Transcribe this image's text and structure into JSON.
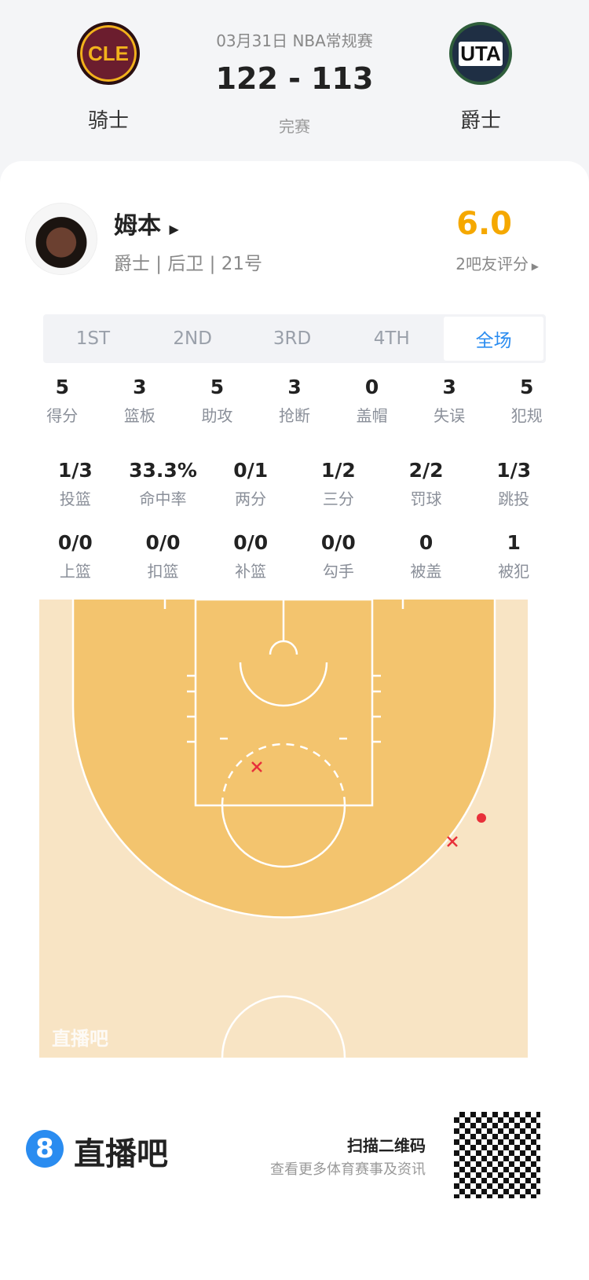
{
  "game": {
    "date_league": "03月31日 NBA常规赛",
    "score": "122 - 113",
    "status": "完赛",
    "home": {
      "abbr": "CLE",
      "name": "骑士"
    },
    "away": {
      "abbr": "UTA",
      "name": "爵士"
    }
  },
  "player": {
    "name": "姆本",
    "info": "爵士 | 后卫 | 21号",
    "rating": "6.0",
    "rating_label": "2吧友评分"
  },
  "tabs": [
    {
      "label": "1ST"
    },
    {
      "label": "2ND"
    },
    {
      "label": "3RD"
    },
    {
      "label": "4TH"
    },
    {
      "label": "全场",
      "active": true
    }
  ],
  "stats_row1": [
    {
      "v": "5",
      "l": "得分"
    },
    {
      "v": "3",
      "l": "篮板"
    },
    {
      "v": "5",
      "l": "助攻"
    },
    {
      "v": "3",
      "l": "抢断"
    },
    {
      "v": "0",
      "l": "盖帽"
    },
    {
      "v": "3",
      "l": "失误"
    },
    {
      "v": "5",
      "l": "犯规"
    }
  ],
  "stats_row2": [
    {
      "v": "1/3",
      "l": "投篮"
    },
    {
      "v": "33.3%",
      "l": "命中率"
    },
    {
      "v": "0/1",
      "l": "两分"
    },
    {
      "v": "1/2",
      "l": "三分"
    },
    {
      "v": "2/2",
      "l": "罚球"
    },
    {
      "v": "1/3",
      "l": "跳投"
    }
  ],
  "stats_row3": [
    {
      "v": "0/0",
      "l": "上篮"
    },
    {
      "v": "0/0",
      "l": "扣篮"
    },
    {
      "v": "0/0",
      "l": "补篮"
    },
    {
      "v": "0/0",
      "l": "勾手"
    },
    {
      "v": "0",
      "l": "被盖"
    },
    {
      "v": "1",
      "l": "被犯"
    }
  ],
  "court": {
    "watermark": "直播吧",
    "shots": [
      {
        "result": "miss"
      },
      {
        "result": "miss"
      },
      {
        "result": "make"
      }
    ],
    "colors": {
      "make": "#e8303a",
      "miss": "#e8303a",
      "paint": "#f3c46e",
      "outside": "#f8e4c4"
    }
  },
  "footer": {
    "brand": "直播吧",
    "scan": "扫描二维码",
    "sub": "查看更多体育赛事及资讯"
  },
  "colors": {
    "accent": "#2a8cf0",
    "rating": "#f5a800"
  }
}
